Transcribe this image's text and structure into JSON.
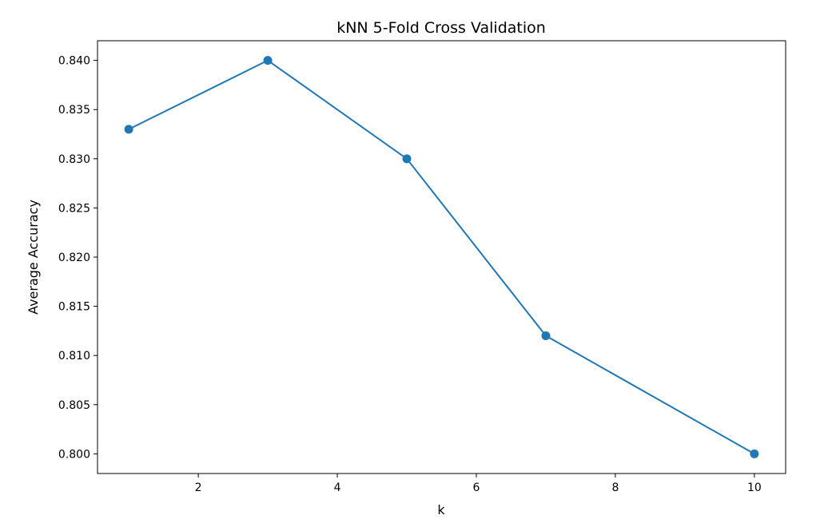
{
  "chart_data": {
    "type": "line",
    "title": "kNN 5-Fold Cross Validation",
    "xlabel": "k",
    "ylabel": "Average Accuracy",
    "x": [
      1,
      3,
      5,
      7,
      10
    ],
    "series": [
      {
        "values": [
          0.833,
          0.84,
          0.83,
          0.812,
          0.8
        ]
      }
    ],
    "xlim": [
      0.55,
      10.45
    ],
    "ylim": [
      0.798,
      0.842
    ],
    "xticks": [
      2,
      4,
      6,
      8,
      10
    ],
    "xtick_labels": [
      "2",
      "4",
      "6",
      "8",
      "10"
    ],
    "yticks": [
      0.8,
      0.805,
      0.81,
      0.815,
      0.82,
      0.825,
      0.83,
      0.835,
      0.84
    ],
    "ytick_labels": [
      "0.800",
      "0.805",
      "0.810",
      "0.815",
      "0.820",
      "0.825",
      "0.830",
      "0.835",
      "0.840"
    ],
    "marker": "circle",
    "grid": false,
    "colors": {
      "line": "#1f77b4",
      "axes": "#000000"
    }
  }
}
